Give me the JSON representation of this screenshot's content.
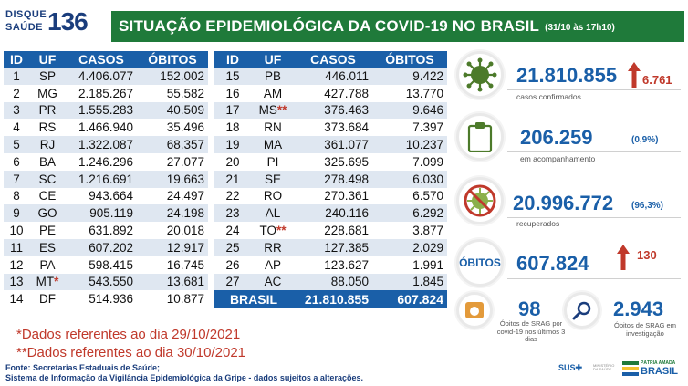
{
  "header": {
    "logo_disque": "DISQUE",
    "logo_saude": "SAÚDE",
    "logo_number": "136",
    "title": "SITUAÇÃO EPIDEMIOLÓGICA DA COVID-19 NO BRASIL",
    "date": "(31/10 às 17h10)"
  },
  "table_headers": {
    "id": "ID",
    "uf": "UF",
    "casos": "CASOS",
    "obitos": "ÓBITOS"
  },
  "table_left": [
    {
      "id": "1",
      "uf": "SP",
      "star": "",
      "casos": "4.406.077",
      "obitos": "152.002"
    },
    {
      "id": "2",
      "uf": "MG",
      "star": "",
      "casos": "2.185.267",
      "obitos": "55.582"
    },
    {
      "id": "3",
      "uf": "PR",
      "star": "",
      "casos": "1.555.283",
      "obitos": "40.509"
    },
    {
      "id": "4",
      "uf": "RS",
      "star": "",
      "casos": "1.466.940",
      "obitos": "35.496"
    },
    {
      "id": "5",
      "uf": "RJ",
      "star": "",
      "casos": "1.322.087",
      "obitos": "68.357"
    },
    {
      "id": "6",
      "uf": "BA",
      "star": "",
      "casos": "1.246.296",
      "obitos": "27.077"
    },
    {
      "id": "7",
      "uf": "SC",
      "star": "",
      "casos": "1.216.691",
      "obitos": "19.663"
    },
    {
      "id": "8",
      "uf": "CE",
      "star": "",
      "casos": "943.664",
      "obitos": "24.497"
    },
    {
      "id": "9",
      "uf": "GO",
      "star": "",
      "casos": "905.119",
      "obitos": "24.198"
    },
    {
      "id": "10",
      "uf": "PE",
      "star": "",
      "casos": "631.892",
      "obitos": "20.018"
    },
    {
      "id": "11",
      "uf": "ES",
      "star": "",
      "casos": "607.202",
      "obitos": "12.917"
    },
    {
      "id": "12",
      "uf": "PA",
      "star": "",
      "casos": "598.415",
      "obitos": "16.745"
    },
    {
      "id": "13",
      "uf": "MT",
      "star": "*",
      "casos": "543.550",
      "obitos": "13.681"
    },
    {
      "id": "14",
      "uf": "DF",
      "star": "",
      "casos": "514.936",
      "obitos": "10.877"
    }
  ],
  "table_right": [
    {
      "id": "15",
      "uf": "PB",
      "star": "",
      "casos": "446.011",
      "obitos": "9.422"
    },
    {
      "id": "16",
      "uf": "AM",
      "star": "",
      "casos": "427.788",
      "obitos": "13.770"
    },
    {
      "id": "17",
      "uf": "MS",
      "star": "**",
      "casos": "376.463",
      "obitos": "9.646"
    },
    {
      "id": "18",
      "uf": "RN",
      "star": "",
      "casos": "373.684",
      "obitos": "7.397"
    },
    {
      "id": "19",
      "uf": "MA",
      "star": "",
      "casos": "361.077",
      "obitos": "10.237"
    },
    {
      "id": "20",
      "uf": "PI",
      "star": "",
      "casos": "325.695",
      "obitos": "7.099"
    },
    {
      "id": "21",
      "uf": "SE",
      "star": "",
      "casos": "278.498",
      "obitos": "6.030"
    },
    {
      "id": "22",
      "uf": "RO",
      "star": "",
      "casos": "270.361",
      "obitos": "6.570"
    },
    {
      "id": "23",
      "uf": "AL",
      "star": "",
      "casos": "240.116",
      "obitos": "6.292"
    },
    {
      "id": "24",
      "uf": "TO",
      "star": "**",
      "casos": "228.681",
      "obitos": "3.877"
    },
    {
      "id": "25",
      "uf": "RR",
      "star": "",
      "casos": "127.385",
      "obitos": "2.029"
    },
    {
      "id": "26",
      "uf": "AP",
      "star": "",
      "casos": "123.627",
      "obitos": "1.991"
    },
    {
      "id": "27",
      "uf": "AC",
      "star": "",
      "casos": "88.050",
      "obitos": "1.845"
    }
  ],
  "total": {
    "label": "BRASIL",
    "casos": "21.810.855",
    "obitos": "607.824"
  },
  "notes": {
    "note1": "*Dados referentes ao dia 29/10/2021",
    "note2": "**Dados referentes ao dia 30/10/2021",
    "source1": "Fonte: Secretarias Estaduais de Saúde;",
    "source2": "Sistema de Informação da Vigilância Epidemiológica da Gripe - dados sujeitos a alterações."
  },
  "panels": {
    "confirmados": {
      "value": "21.810.855",
      "delta": "6.761",
      "label": "casos confirmados",
      "icon": "virus-icon"
    },
    "acompanhamento": {
      "value": "206.259",
      "pct": "(0,9%)",
      "label": "em acompanhamento",
      "icon": "clipboard-icon"
    },
    "recuperados": {
      "value": "20.996.772",
      "pct": "(96,3%)",
      "label": "recuperados",
      "icon": "crossed-virus-icon"
    },
    "obitos": {
      "label": "ÓBITOS",
      "value": "607.824",
      "delta": "130"
    },
    "srag": {
      "value": "98",
      "label": "Óbitos de SRAG por covid-19 nos últimos 3 dias",
      "icon": "folder-icon"
    },
    "investigacao": {
      "value": "2.943",
      "label": "Óbitos de SRAG em investigação",
      "icon": "magnifier-icon"
    }
  },
  "footer": {
    "sus": "SUS",
    "ministerio": "MINISTÉRIO DA SAÚDE",
    "gov_small": "PÁTRIA AMADA",
    "gov_brasil": "BRASIL"
  },
  "colors": {
    "title_green": "#1f7a3a",
    "table_blue": "#1a5fa8",
    "row_alt": "#dfe7f1",
    "accent_red": "#c0392b",
    "virus_green": "#4c7a2a"
  }
}
